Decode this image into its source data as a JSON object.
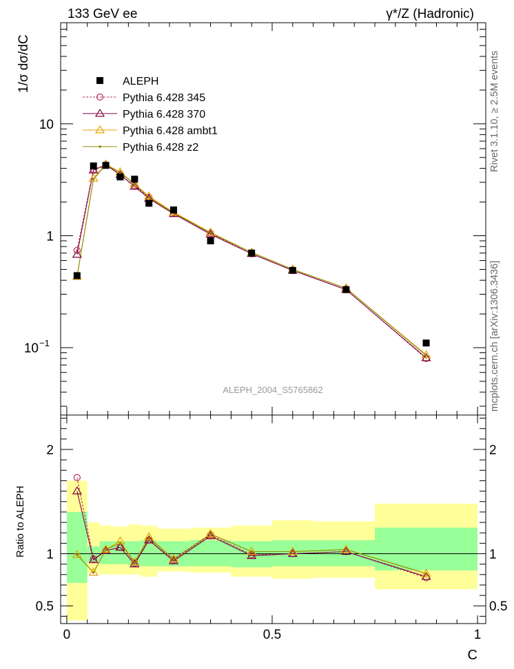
{
  "header": {
    "left": "133 GeV ee",
    "right": "γ*/Z (Hadronic)"
  },
  "side_text": {
    "top": "Rivet 3.1.10, ≥ 2.5M events",
    "bottom": "mcplots.cern.ch [arXiv:1306.3436]"
  },
  "colors": {
    "aleph": "#000000",
    "p345": "#b03050",
    "p370": "#800040",
    "ambt1": "#e8a000",
    "z2": "#8c8c00",
    "band_inner": "#99ff99",
    "band_outer": "#ffff99",
    "watermark": "#999999"
  },
  "chart_data": [
    {
      "type": "scatter",
      "ylabel": "1/σ  dσ/dC",
      "yscale": "log",
      "ylim": [
        0.025,
        80
      ],
      "xlim": [
        -0.015,
        1.02
      ],
      "y_ticks": [
        {
          "value": 0.1,
          "label": "10",
          "sup": "−1"
        },
        {
          "value": 1,
          "label": "1",
          "sup": ""
        },
        {
          "value": 10,
          "label": "10",
          "sup": ""
        }
      ],
      "watermark": "ALEPH_2004_S5765862",
      "legend": [
        {
          "name": "ALEPH",
          "key": "aleph",
          "marker": "square",
          "dashed": false
        },
        {
          "name": "Pythia 6.428 345",
          "key": "p345",
          "marker": "circle",
          "dashed": true
        },
        {
          "name": "Pythia 6.428 370",
          "key": "p370",
          "marker": "triangle",
          "dashed": false
        },
        {
          "name": "Pythia 6.428 ambt1",
          "key": "ambt1",
          "marker": "triangle",
          "dashed": false
        },
        {
          "name": "Pythia 6.428 z2",
          "key": "z2",
          "marker": "dot",
          "dashed": false
        }
      ],
      "x": [
        0.025,
        0.065,
        0.095,
        0.13,
        0.165,
        0.2,
        0.26,
        0.35,
        0.45,
        0.55,
        0.68,
        0.875
      ],
      "bin_edges": [
        0,
        0.05,
        0.08,
        0.11,
        0.15,
        0.18,
        0.22,
        0.3,
        0.4,
        0.5,
        0.6,
        0.75,
        1.0
      ],
      "series": [
        {
          "name": "ALEPH",
          "key": "aleph",
          "values": [
            0.44,
            4.2,
            4.25,
            3.35,
            3.2,
            1.95,
            1.7,
            0.9,
            0.7,
            0.49,
            0.33,
            0.11
          ]
        },
        {
          "name": "Pythia 6.428 345",
          "key": "p345",
          "values": [
            0.74,
            3.9,
            4.3,
            3.5,
            2.8,
            2.2,
            1.6,
            1.05,
            0.69,
            0.49,
            0.33,
            0.08
          ]
        },
        {
          "name": "Pythia 6.428 370",
          "key": "p370",
          "values": [
            0.68,
            3.85,
            4.3,
            3.5,
            2.75,
            2.15,
            1.57,
            1.03,
            0.69,
            0.49,
            0.33,
            0.081
          ]
        },
        {
          "name": "Pythia 6.428 ambt1",
          "key": "ambt1",
          "values": [
            0.43,
            3.25,
            4.35,
            3.7,
            2.9,
            2.25,
            1.62,
            1.07,
            0.71,
            0.5,
            0.34,
            0.086
          ]
        },
        {
          "name": "Pythia 6.428 z2",
          "key": "z2",
          "values": [
            0.43,
            3.2,
            4.3,
            3.65,
            2.9,
            2.2,
            1.6,
            1.06,
            0.71,
            0.5,
            0.34,
            0.085
          ]
        }
      ]
    },
    {
      "type": "line",
      "ylabel": "Ratio to ALEPH",
      "xlabel": "C",
      "ylim": [
        0.33,
        2.33
      ],
      "xlim": [
        -0.015,
        1.02
      ],
      "y_ticks": [
        0.5,
        1,
        2
      ],
      "y_tick_labels": [
        "0.5",
        "1",
        "2"
      ],
      "x_ticks": [
        0,
        0.5,
        1
      ],
      "x_tick_labels": [
        "0",
        "0.5",
        "1"
      ],
      "band_inner": [
        [
          0.72,
          1.4
        ],
        [
          0.92,
          1.07
        ],
        [
          0.9,
          1.12
        ],
        [
          0.9,
          1.12
        ],
        [
          0.88,
          1.12
        ],
        [
          0.88,
          1.13
        ],
        [
          0.88,
          1.12
        ],
        [
          0.88,
          1.13
        ],
        [
          0.87,
          1.12
        ],
        [
          0.88,
          1.13
        ],
        [
          0.88,
          1.13
        ],
        [
          0.84,
          1.25
        ]
      ],
      "band_outer": [
        [
          0.36,
          1.7
        ],
        [
          0.82,
          1.3
        ],
        [
          0.8,
          1.27
        ],
        [
          0.8,
          1.26
        ],
        [
          0.8,
          1.28
        ],
        [
          0.78,
          1.27
        ],
        [
          0.83,
          1.24
        ],
        [
          0.82,
          1.25
        ],
        [
          0.78,
          1.27
        ],
        [
          0.76,
          1.32
        ],
        [
          0.77,
          1.31
        ],
        [
          0.66,
          1.48
        ]
      ],
      "x": [
        0.025,
        0.065,
        0.095,
        0.13,
        0.165,
        0.2,
        0.26,
        0.35,
        0.45,
        0.55,
        0.68,
        0.875
      ],
      "series": [
        {
          "name": "Pythia 6.428 345",
          "key": "p345",
          "values": [
            1.73,
            0.95,
            1.03,
            1.06,
            0.91,
            1.13,
            0.94,
            1.18,
            0.99,
            1.0,
            1.02,
            0.77
          ]
        },
        {
          "name": "Pythia 6.428 370",
          "key": "p370",
          "values": [
            1.6,
            0.94,
            1.03,
            1.06,
            0.9,
            1.13,
            0.93,
            1.17,
            0.98,
            1.0,
            1.02,
            0.78
          ]
        },
        {
          "name": "Pythia 6.428 ambt1",
          "key": "ambt1",
          "values": [
            0.99,
            0.82,
            1.04,
            1.12,
            0.92,
            1.16,
            0.95,
            1.19,
            1.02,
            1.02,
            1.04,
            0.81
          ]
        },
        {
          "name": "Pythia 6.428 z2",
          "key": "z2",
          "values": [
            0.99,
            0.82,
            1.04,
            1.1,
            0.92,
            1.15,
            0.95,
            1.19,
            1.02,
            1.02,
            1.04,
            0.81
          ]
        }
      ]
    }
  ]
}
